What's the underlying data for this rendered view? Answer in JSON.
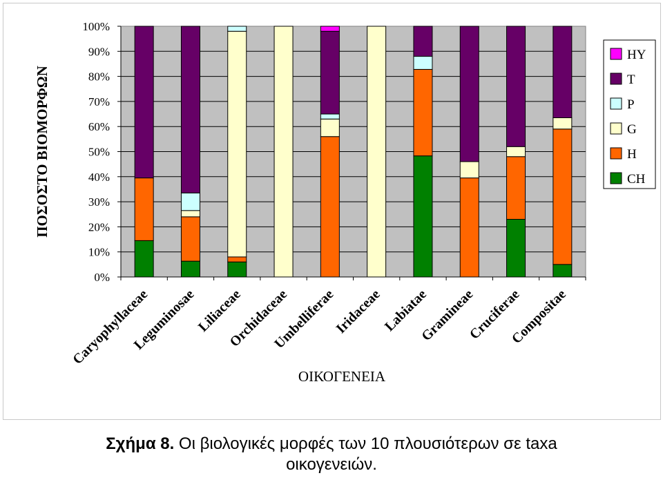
{
  "chart_data": {
    "type": "bar",
    "stacked": true,
    "ylabel": "ΠΟΣΟΣΤΟ ΒΙΟΜΟΡΦΩΝ",
    "xlabel": "ΟΙΚΟΓΕΝΕΙΑ",
    "ylim": [
      0,
      100
    ],
    "yticks": [
      "0%",
      "10%",
      "20%",
      "30%",
      "40%",
      "50%",
      "60%",
      "70%",
      "80%",
      "90%",
      "100%"
    ],
    "grid": true,
    "legend_position": "right",
    "categories": [
      "Caryophyllaceae",
      "Leguminosae",
      "Liliaceae",
      "Orchidaceae",
      "Umbelliferae",
      "Iridaceae",
      "Labiatae",
      "Gramineae",
      "Cruciferae",
      "Compositae"
    ],
    "series": [
      {
        "name": "CH",
        "color": "#008000",
        "values": [
          14.5,
          6.3,
          6.0,
          0,
          0,
          0,
          48.3,
          0,
          23.0,
          5.0
        ]
      },
      {
        "name": "H",
        "color": "#FF6600",
        "values": [
          25.0,
          17.7,
          2.0,
          0,
          56.0,
          0,
          34.5,
          39.5,
          25.0,
          54.0
        ]
      },
      {
        "name": "G",
        "color": "#FFFFCC",
        "values": [
          0,
          2.5,
          90.0,
          100.0,
          7.0,
          100.0,
          0,
          6.5,
          4.0,
          4.5
        ]
      },
      {
        "name": "P",
        "color": "#CCFFFF",
        "values": [
          0,
          7.0,
          2.0,
          0,
          2.0,
          0,
          5.2,
          0,
          0,
          0
        ]
      },
      {
        "name": "T",
        "color": "#660066",
        "values": [
          60.5,
          66.5,
          0,
          0,
          33.0,
          0,
          12.0,
          54.0,
          48.0,
          36.5
        ]
      },
      {
        "name": "HY",
        "color": "#FF00FF",
        "values": [
          0,
          0,
          0,
          0,
          2.0,
          0,
          0,
          0,
          0,
          0
        ]
      }
    ],
    "legend_order": [
      "HY",
      "T",
      "P",
      "G",
      "H",
      "CH"
    ],
    "plot_background": "#C0C0C0"
  },
  "caption": {
    "label": "Σχήμα 8.",
    "text_line1": " Οι βιολογικές μορφές των 10 πλουσιότερων σε taxa",
    "text_line2": "οικογενειών."
  }
}
